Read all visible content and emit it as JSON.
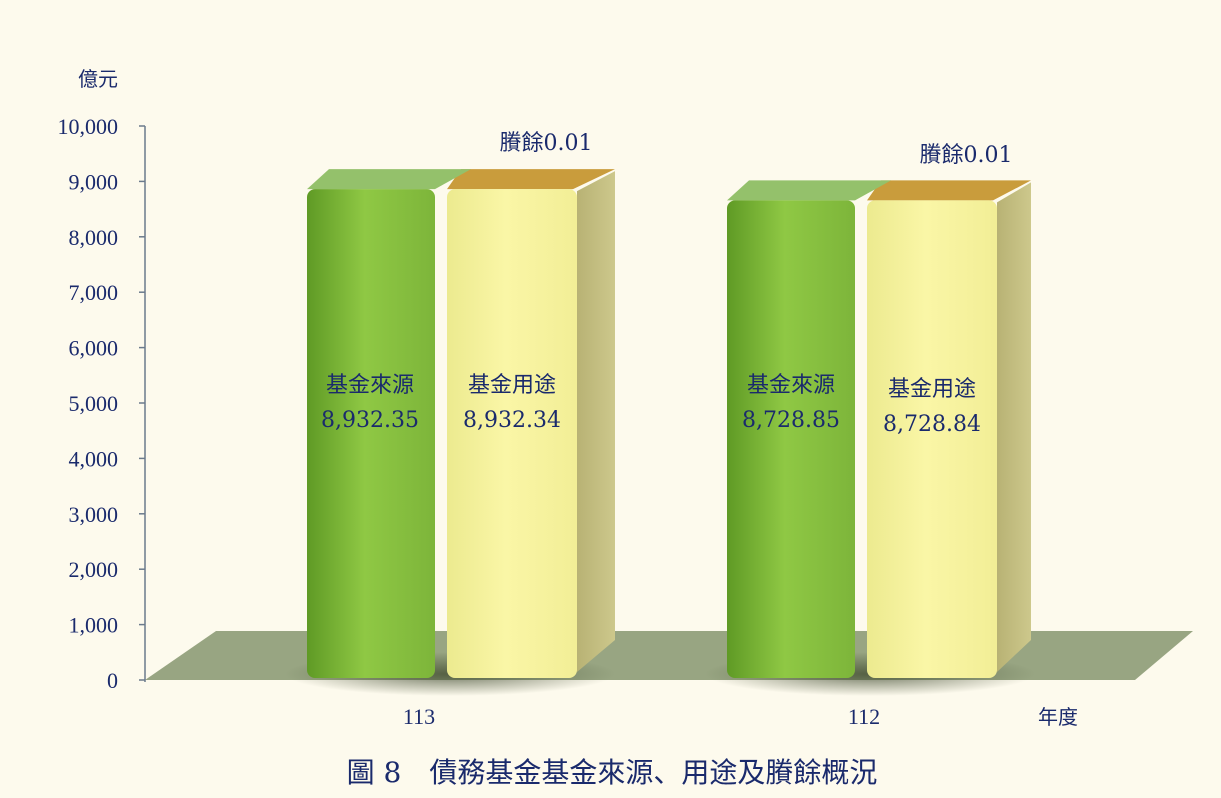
{
  "chart_data": {
    "type": "bar",
    "title": "圖 8　債務基金基金來源、用途及賸餘概況",
    "ylabel": "億元",
    "xlabel": "年度",
    "ylim": [
      0,
      10000
    ],
    "yticks": [
      0,
      1000,
      2000,
      3000,
      4000,
      5000,
      6000,
      7000,
      8000,
      9000,
      10000
    ],
    "ytick_labels": [
      "0",
      "1,000",
      "2,000",
      "3,000",
      "4,000",
      "5,000",
      "6,000",
      "7,000",
      "8,000",
      "9,000",
      "10,000"
    ],
    "grid": false,
    "categories": [
      "113",
      "112"
    ],
    "series": [
      {
        "name": "基金來源",
        "color": "#8cc63f",
        "values": [
          8932.35,
          8728.85
        ],
        "value_labels": [
          "8,932.35",
          "8,728.85"
        ]
      },
      {
        "name": "基金用途",
        "color": "#f7f39a",
        "values": [
          8932.34,
          8728.84
        ],
        "value_labels": [
          "8,932.34",
          "8,728.84"
        ]
      }
    ],
    "annotations": [
      "賸餘0.01",
      "賸餘0.01"
    ]
  },
  "colors": {
    "background": "#fdfaed",
    "floor": "#98a582",
    "axis": "#6b7a8c",
    "text": "#1a2a6c",
    "source_top": "#94c16b",
    "source_side": "#6aa130",
    "use_top": "#c99c3c",
    "use_side": "#c2bd7e"
  }
}
